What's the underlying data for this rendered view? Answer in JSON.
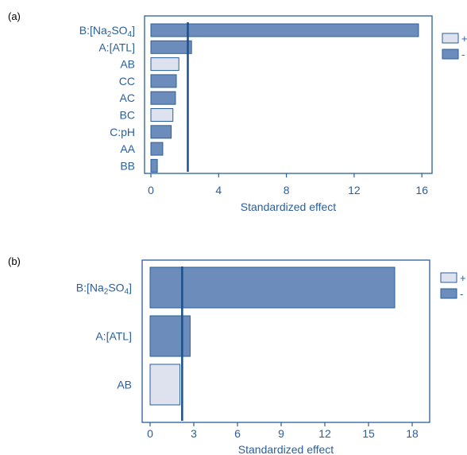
{
  "colors": {
    "axis": "#2a5f9b",
    "bar_positive": "#dde2ee",
    "bar_negative": "#6c8dbb",
    "bar_stroke": "#2a5f9b",
    "ref_line": "#1b4f8c"
  },
  "chart_data": [
    {
      "type": "bar",
      "orientation": "horizontal",
      "panel_label": "(a)",
      "title": "",
      "xlabel": "Standardized effect",
      "ylabel": "",
      "xlim": [
        0,
        16.6
      ],
      "xticks": [
        0,
        4,
        8,
        12,
        16
      ],
      "grid": false,
      "legend_position": "right",
      "legend": [
        {
          "label": "+",
          "key": "positive"
        },
        {
          "label": "-",
          "key": "negative"
        }
      ],
      "reference_line": 2.18,
      "categories": [
        "B:[Na2SO4]",
        "A:[ATL]",
        "AB",
        "CC",
        "AC",
        "BC",
        "C:pH",
        "AA",
        "BB"
      ],
      "values": [
        15.8,
        2.4,
        1.65,
        1.5,
        1.45,
        1.3,
        1.2,
        0.7,
        0.38
      ],
      "signs": [
        "negative",
        "negative",
        "positive",
        "negative",
        "negative",
        "positive",
        "negative",
        "negative",
        "negative"
      ]
    },
    {
      "type": "bar",
      "orientation": "horizontal",
      "panel_label": "(b)",
      "title": "",
      "xlabel": "Standardized effect",
      "ylabel": "",
      "xlim": [
        0,
        19.2
      ],
      "xticks": [
        0,
        3,
        6,
        9,
        12,
        15,
        18
      ],
      "grid": false,
      "legend_position": "right",
      "legend": [
        {
          "label": "+",
          "key": "positive"
        },
        {
          "label": "-",
          "key": "negative"
        }
      ],
      "reference_line": 2.2,
      "categories": [
        "B:[Na2SO4]",
        "A:[ATL]",
        "AB"
      ],
      "values": [
        16.8,
        2.75,
        2.05
      ],
      "signs": [
        "negative",
        "negative",
        "positive"
      ]
    }
  ]
}
